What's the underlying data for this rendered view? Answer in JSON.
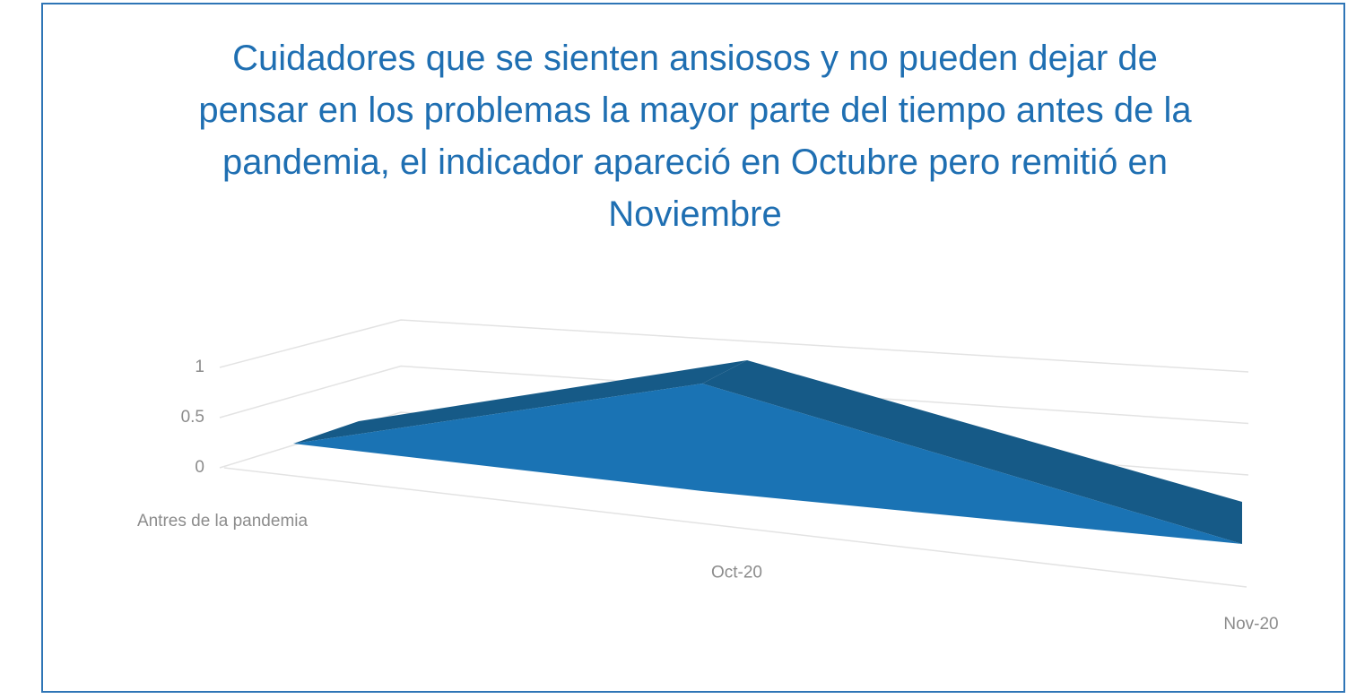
{
  "chart_data": {
    "type": "area3d",
    "title": "Cuidadores que se sienten ansiosos y no pueden dejar de pensar en los problemas la mayor parte del tiempo antes de la pandemia, el indicador apareció en Octubre pero remitió en Noviembre",
    "categories": [
      "Antres de la pandemia",
      "Oct-20",
      "Nov-20"
    ],
    "values": [
      0,
      1,
      0
    ],
    "ylim": [
      0,
      1
    ],
    "yticks": [
      0,
      0.5,
      1
    ],
    "color": "#1a73b4",
    "grid": true
  }
}
